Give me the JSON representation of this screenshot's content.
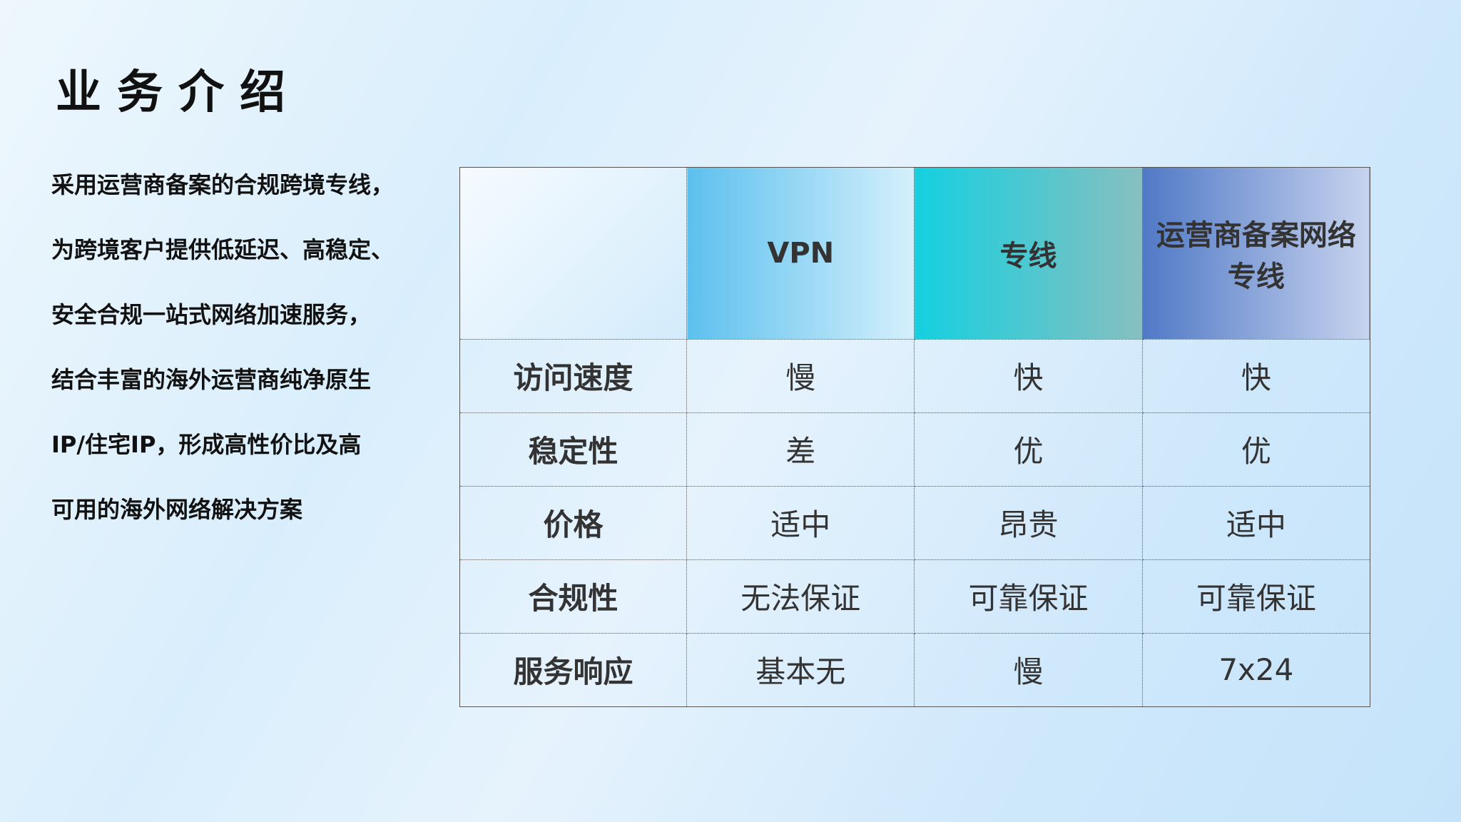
{
  "title": "业务介绍",
  "description": [
    "采用运营商备案的合规跨境专线，",
    "为跨境客户提供低延迟、高稳定、",
    "安全合规一站式网络加速服务，",
    "结合丰富的海外运营商纯净原生",
    "IP/住宅IP，形成高性价比及高",
    "可用的海外网络解决方案"
  ],
  "table": {
    "headers": [
      "",
      "VPN",
      "专线",
      "运营商备案网络专线"
    ],
    "rows": [
      [
        "访问速度",
        "慢",
        "快",
        "快"
      ],
      [
        "稳定性",
        "差",
        "优",
        "优"
      ],
      [
        "价格",
        "适中",
        "昂贵",
        "适中"
      ],
      [
        "合规性",
        "无法保证",
        "可靠保证",
        "可靠保证"
      ],
      [
        "服务响应",
        "基本无",
        "慢",
        "7x24"
      ]
    ]
  }
}
